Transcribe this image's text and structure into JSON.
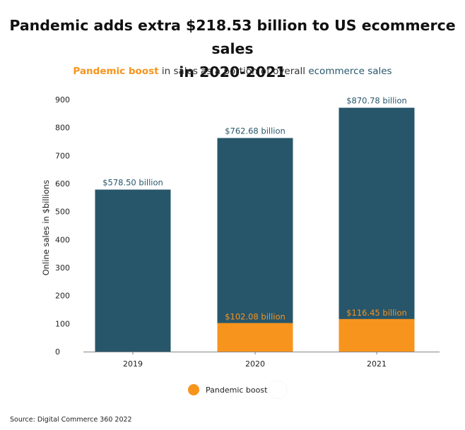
{
  "chart_data": {
    "type": "bar",
    "title_lines": [
      "Pandemic adds extra $218.53 billion to US ecommerce sales",
      "in 2020-2021"
    ],
    "subtitle": {
      "part1": "Pandemic boost",
      "part2": " in sales as a portion of overall ",
      "part3": "ecommerce sales"
    },
    "categories": [
      "2019",
      "2020",
      "2021"
    ],
    "series": [
      {
        "name": "ecommerce sales",
        "color": "#27566b",
        "values": [
          578.5,
          762.68,
          870.78
        ],
        "labels": [
          "$578.50 billion",
          "$762.68 billion",
          "$870.78 billion"
        ]
      },
      {
        "name": "Pandemic boost",
        "color": "#f7941d",
        "values": [
          0,
          102.08,
          116.45
        ],
        "labels": [
          "",
          "$102.08 billion",
          "$116.45 billion"
        ]
      }
    ],
    "ylabel": "Online sales in $billions",
    "xlabel": "",
    "ylim": [
      0,
      900
    ],
    "yticks": [
      0,
      100,
      200,
      300,
      400,
      500,
      600,
      700,
      800,
      900
    ],
    "grid": false,
    "legend": {
      "position": "bottom-center",
      "items": [
        {
          "label": "Pandemic boost",
          "color": "#f7941d"
        },
        {
          "label": "",
          "color": "#ffffff"
        }
      ]
    },
    "source": "Source: Digital Commerce 360 2022"
  }
}
